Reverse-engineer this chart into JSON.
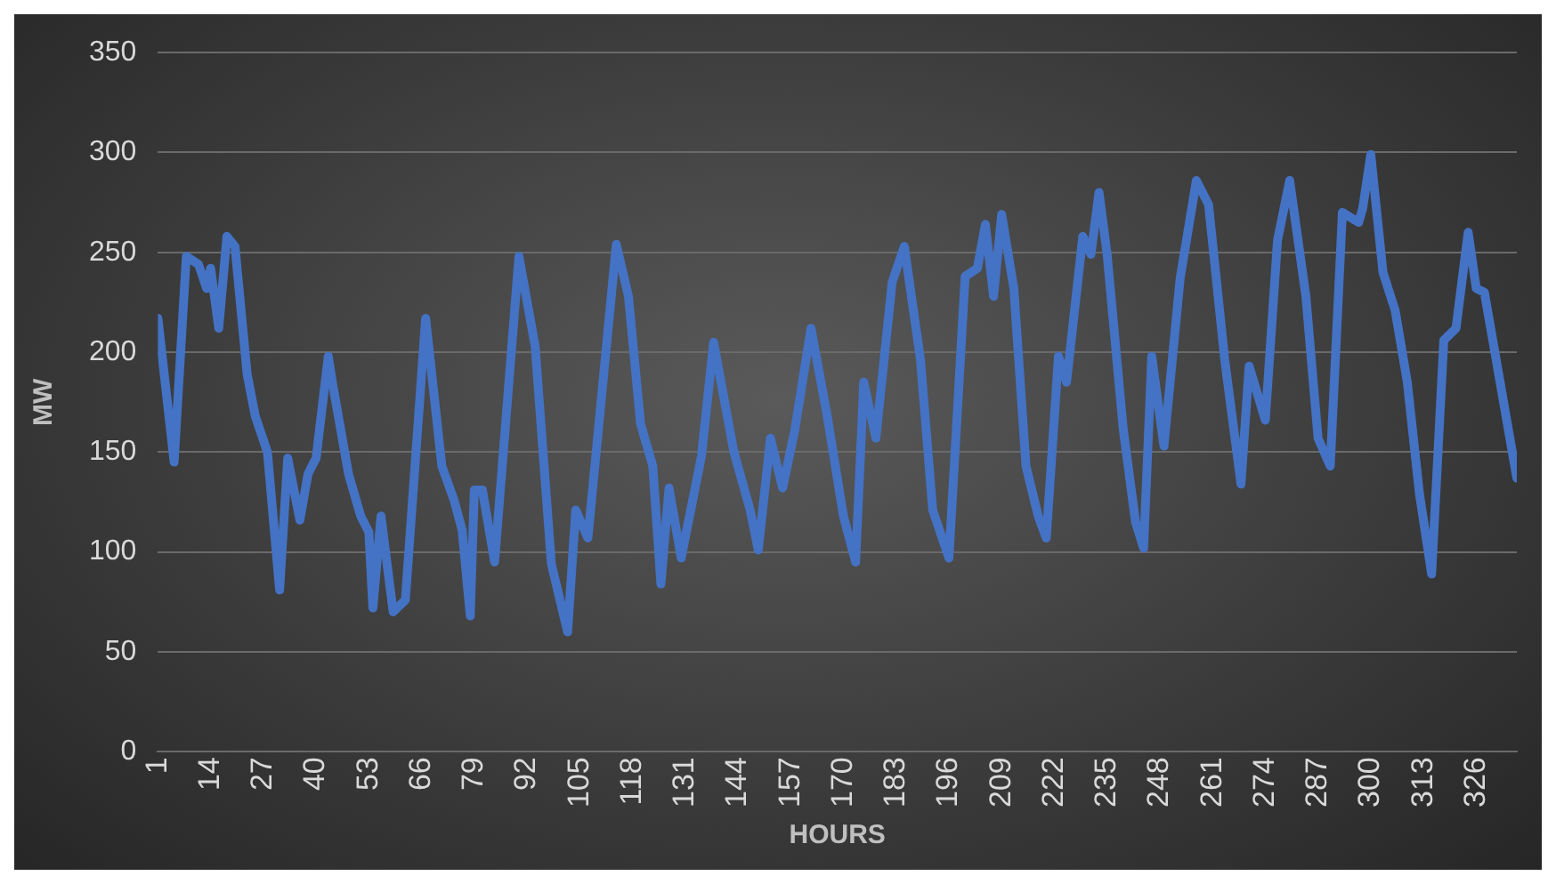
{
  "chart_data": {
    "type": "line",
    "xlabel": "HOURS",
    "ylabel": "MW",
    "x": [
      1,
      5,
      8,
      11,
      13,
      14,
      16,
      18,
      20,
      23,
      25,
      28,
      31,
      33,
      36,
      38,
      40,
      43,
      44,
      48,
      51,
      53,
      54,
      56,
      59,
      62,
      67,
      71,
      74,
      76,
      78,
      79,
      81,
      84,
      90,
      94,
      98,
      102,
      104,
      107,
      114,
      117,
      120,
      123,
      125,
      127,
      130,
      135,
      138,
      143,
      147,
      149,
      152,
      155,
      158,
      162,
      166,
      170,
      173,
      175,
      178,
      182,
      185,
      189,
      192,
      196,
      200,
      203,
      205,
      207,
      209,
      212,
      215,
      218,
      220,
      223,
      225,
      229,
      231,
      233,
      235,
      239,
      242,
      244,
      246,
      249,
      253,
      257,
      260,
      264,
      268,
      270,
      274,
      277,
      280,
      284,
      287,
      290,
      293,
      297,
      298,
      300,
      303,
      306,
      309,
      312,
      315,
      318,
      321,
      324,
      326,
      328,
      336
    ],
    "series": [
      {
        "color": "#4472c4",
        "values": [
          217,
          145,
          248,
          244,
          232,
          242,
          212,
          258,
          253,
          189,
          168,
          150,
          81,
          147,
          116,
          139,
          147,
          198,
          185,
          139,
          118,
          110,
          72,
          118,
          70,
          76,
          217,
          143,
          126,
          111,
          68,
          131,
          131,
          95,
          248,
          203,
          94,
          60,
          121,
          107,
          254,
          228,
          164,
          143,
          84,
          132,
          97,
          148,
          205,
          150,
          121,
          101,
          157,
          132,
          161,
          212,
          168,
          118,
          95,
          185,
          157,
          235,
          253,
          196,
          121,
          97,
          238,
          242,
          264,
          228,
          269,
          232,
          143,
          118,
          107,
          198,
          185,
          258,
          249,
          280,
          249,
          161,
          115,
          102,
          198,
          153,
          237,
          286,
          274,
          196,
          134,
          193,
          166,
          256,
          286,
          228,
          157,
          143,
          270,
          265,
          272,
          299,
          240,
          221,
          185,
          129,
          89,
          206,
          212,
          260,
          232,
          230,
          137
        ]
      }
    ],
    "xlim": [
      1,
      336
    ],
    "xticks": [
      1,
      14,
      27,
      40,
      53,
      66,
      79,
      92,
      105,
      118,
      131,
      144,
      157,
      170,
      183,
      196,
      209,
      222,
      235,
      248,
      261,
      274,
      287,
      300,
      313,
      326
    ],
    "ylim": [
      0,
      350
    ],
    "yticks": [
      0,
      50,
      100,
      150,
      200,
      250,
      300,
      350
    ],
    "grid": "y",
    "legend": false,
    "marker": "none",
    "line_style": "solid"
  }
}
